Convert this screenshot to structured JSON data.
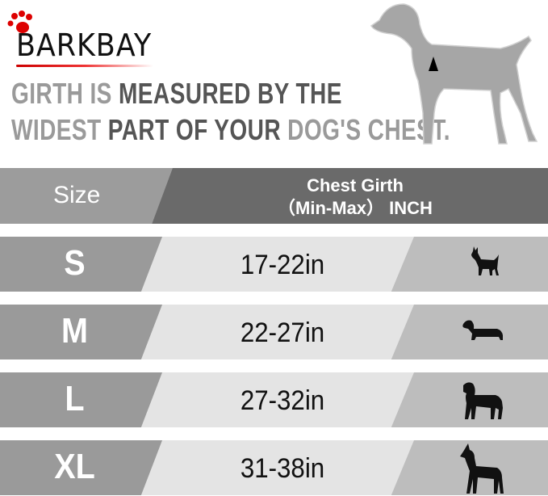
{
  "brand": {
    "name": "BARKBAY",
    "accent_color": "#cc0000"
  },
  "headline": {
    "line1": [
      {
        "text": "GIRTH IS ",
        "tone": "light"
      },
      {
        "text": "MEASURED BY THE",
        "tone": "dark"
      }
    ],
    "line2": [
      {
        "text": "WIDEST ",
        "tone": "light"
      },
      {
        "text": "PART OF YOUR ",
        "tone": "dark"
      },
      {
        "text": "DOG'S CHEST.",
        "tone": "light"
      }
    ]
  },
  "table": {
    "header": {
      "size": "Size",
      "girth_line1": "Chest Girth",
      "girth_line2": "（Min-Max） INCH"
    },
    "rows": [
      {
        "size": "S",
        "girth": "17-22in",
        "icon": "chihuahua-icon"
      },
      {
        "size": "M",
        "girth": "22-27in",
        "icon": "dachshund-icon"
      },
      {
        "size": "L",
        "girth": "27-32in",
        "icon": "labrador-icon"
      },
      {
        "size": "XL",
        "girth": "31-38in",
        "icon": "great-dane-icon"
      }
    ]
  }
}
